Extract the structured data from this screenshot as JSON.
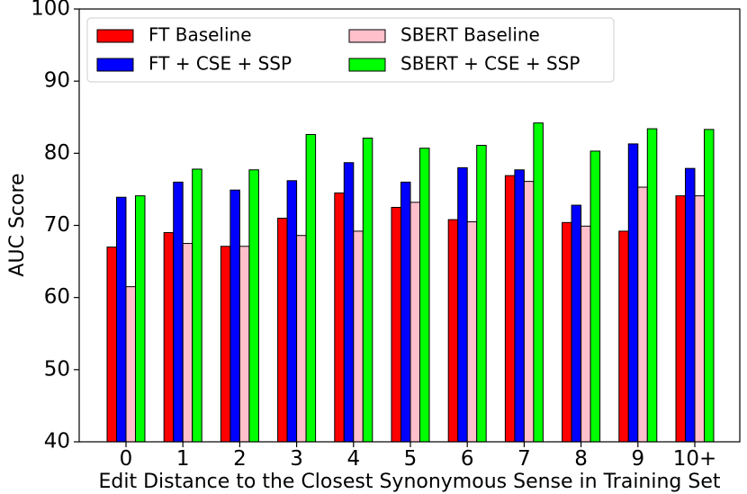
{
  "chart_data": {
    "type": "bar",
    "title": "",
    "xlabel": "Edit Distance to the Closest Synonymous Sense in Training Set",
    "ylabel": "AUC Score",
    "ylim": [
      40,
      100
    ],
    "yticks": [
      40,
      50,
      60,
      70,
      80,
      90,
      100
    ],
    "grid": false,
    "legend_position": "top",
    "categories": [
      "0",
      "1",
      "2",
      "3",
      "4",
      "5",
      "6",
      "7",
      "8",
      "9",
      "10+"
    ],
    "series": [
      {
        "name": "FT Baseline",
        "color": "#ff0000",
        "values": [
          67.0,
          69.0,
          67.1,
          71.0,
          74.5,
          72.5,
          70.8,
          76.9,
          70.4,
          69.2,
          74.1
        ]
      },
      {
        "name": "FT + CSE + SSP",
        "color": "#0000ff",
        "values": [
          73.9,
          76.0,
          74.9,
          76.2,
          78.7,
          76.0,
          78.0,
          77.7,
          72.8,
          81.3,
          77.9
        ]
      },
      {
        "name": "SBERT Baseline",
        "color": "#ffc0cb",
        "values": [
          61.5,
          67.5,
          67.1,
          68.6,
          69.2,
          73.2,
          70.5,
          76.1,
          69.9,
          75.3,
          74.1
        ]
      },
      {
        "name": "SBERT + CSE + SSP",
        "color": "#00ff00",
        "values": [
          74.1,
          77.8,
          77.7,
          82.6,
          82.1,
          80.7,
          81.1,
          84.2,
          80.3,
          83.4,
          83.3
        ]
      }
    ]
  }
}
